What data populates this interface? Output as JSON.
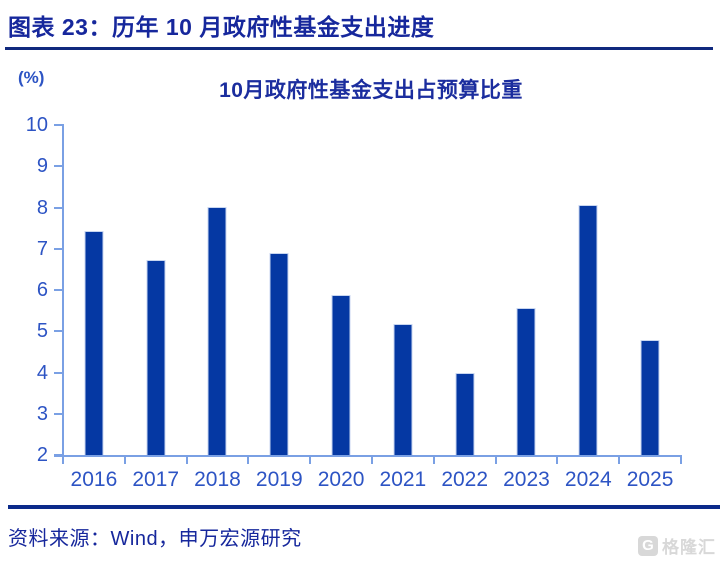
{
  "header": {
    "title": "图表 23：历年 10 月政府性基金支出进度"
  },
  "chart_data": {
    "type": "bar",
    "title": "10月政府性基金支出占预算比重",
    "unit_label": "(%)",
    "categories": [
      "2016",
      "2017",
      "2018",
      "2019",
      "2020",
      "2021",
      "2022",
      "2023",
      "2024",
      "2025"
    ],
    "values": [
      7.44,
      6.72,
      8.01,
      6.89,
      5.87,
      5.18,
      3.99,
      5.56,
      8.05,
      4.79
    ],
    "ylim": [
      2,
      10
    ],
    "yticks": [
      2,
      3,
      4,
      5,
      6,
      7,
      8,
      9,
      10
    ],
    "grid": false,
    "legend": null,
    "bar_color": "#0538a3",
    "axis_color": "#7aa0e4",
    "tick_label_color": "#2d54c4"
  },
  "footer": {
    "source": "资料来源：Wind，申万宏源研究",
    "watermark_icon": "G",
    "watermark_text": "格隆汇"
  }
}
